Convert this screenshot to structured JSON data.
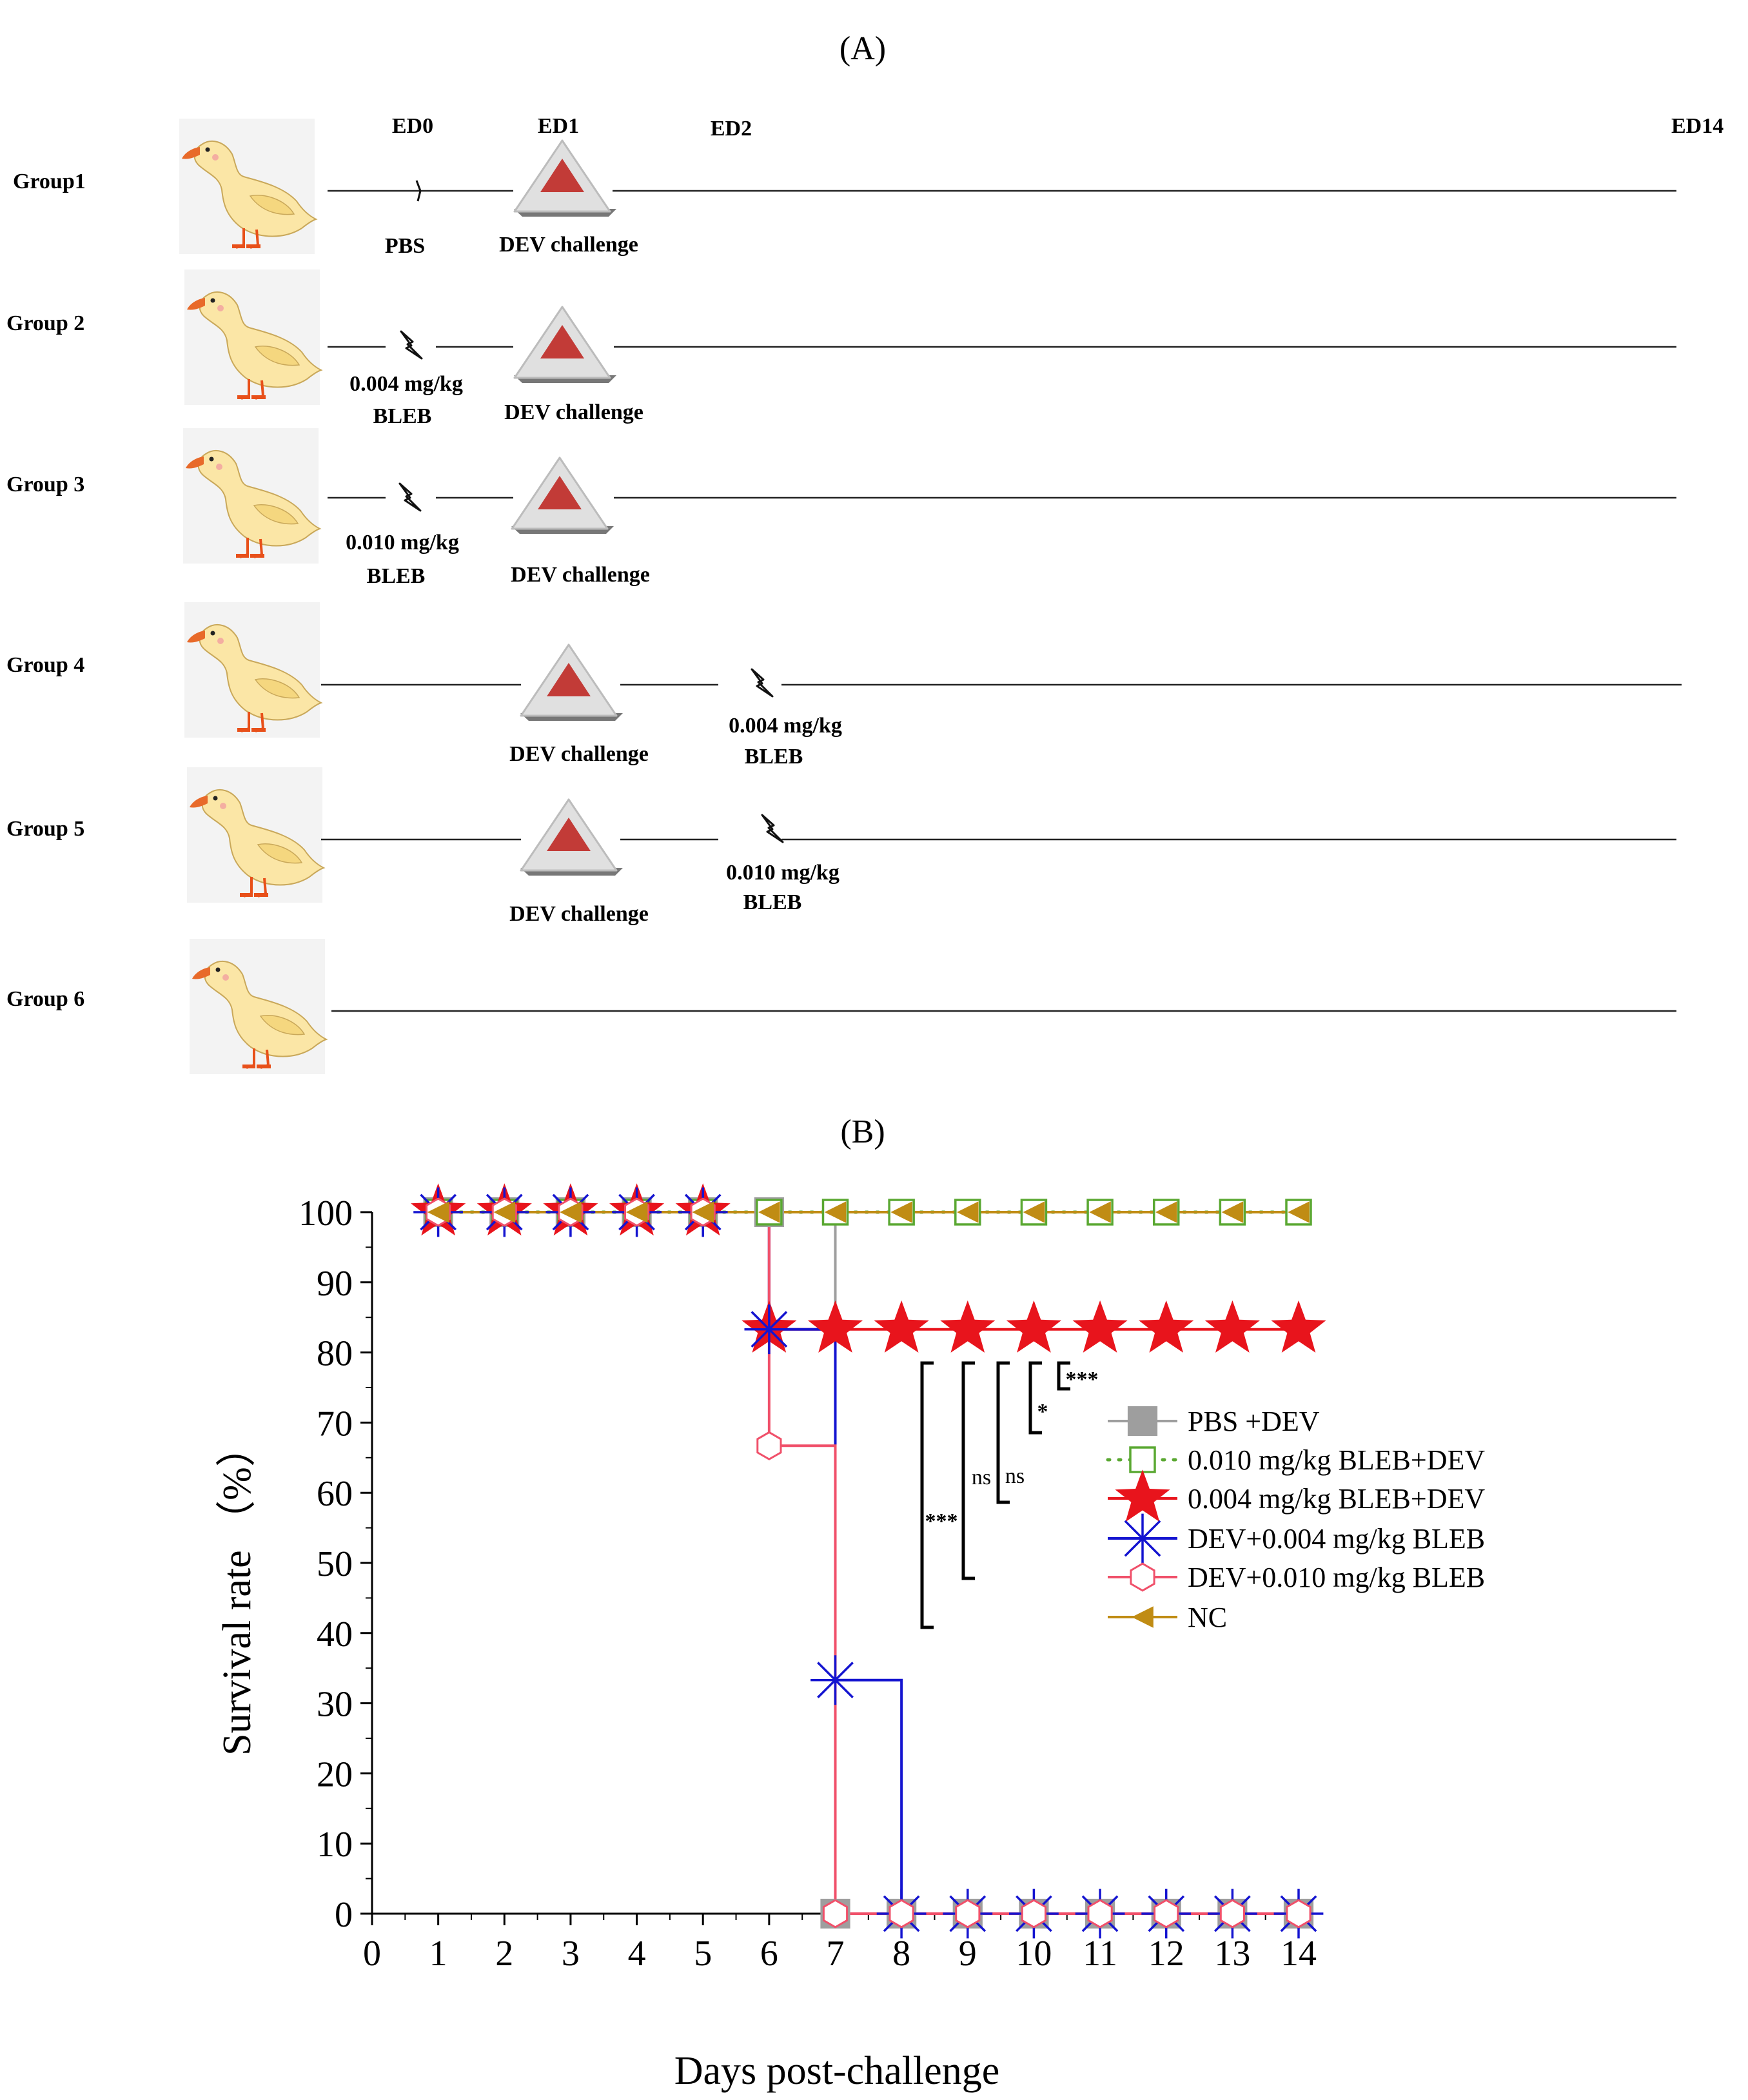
{
  "panel_a": {
    "label": "(A)",
    "day_markers": [
      "ED0",
      "ED1",
      "ED2",
      "ED14"
    ],
    "groups": [
      {
        "name": "Group1",
        "treatment": "PBS",
        "treatment_day": "ED0",
        "challenge": "DEV challenge",
        "challenge_day": "ED1"
      },
      {
        "name": "Group 2",
        "treatment_dose": "0.004 mg/kg",
        "treatment_drug": "BLEB",
        "treatment_day": "ED0",
        "challenge": "DEV challenge",
        "challenge_day": "ED1"
      },
      {
        "name": "Group 3",
        "treatment_dose": "0.010 mg/kg",
        "treatment_drug": "BLEB",
        "treatment_day": "ED0",
        "challenge": "DEV challenge",
        "challenge_day": "ED1"
      },
      {
        "name": "Group 4",
        "challenge": "DEV challenge",
        "challenge_day": "ED1",
        "treatment_dose": "0.004 mg/kg",
        "treatment_drug": "BLEB",
        "treatment_day": "ED2"
      },
      {
        "name": "Group 5",
        "challenge": "DEV challenge",
        "challenge_day": "ED1",
        "treatment_dose": "0.010 mg/kg",
        "treatment_drug": "BLEB",
        "treatment_day": "ED2"
      },
      {
        "name": "Group 6"
      }
    ]
  },
  "panel_b": {
    "label": "(B)"
  },
  "chart_data": {
    "type": "line",
    "step": true,
    "title": "",
    "xlabel": "Days post-challenge",
    "ylabel": "Survival rate （%）",
    "xlim": [
      0,
      14
    ],
    "ylim": [
      0,
      100
    ],
    "x_ticks": [
      0,
      1,
      2,
      3,
      4,
      5,
      6,
      7,
      8,
      9,
      10,
      11,
      12,
      13,
      14
    ],
    "y_ticks": [
      0,
      10,
      20,
      30,
      40,
      50,
      60,
      70,
      80,
      90,
      100
    ],
    "x": [
      1,
      2,
      3,
      4,
      5,
      6,
      7,
      8,
      9,
      10,
      11,
      12,
      13,
      14
    ],
    "series": [
      {
        "name": "PBS +DEV",
        "color": "#9e9e9e",
        "marker": "square-filled",
        "values": [
          100,
          100,
          100,
          100,
          100,
          100,
          0,
          0,
          0,
          0,
          0,
          0,
          0,
          0
        ]
      },
      {
        "name": "0.010 mg/kg BLEB+DEV",
        "color": "#5aa832",
        "marker": "square-open",
        "dotted": true,
        "values": [
          100,
          100,
          100,
          100,
          100,
          100,
          100,
          100,
          100,
          100,
          100,
          100,
          100,
          100
        ]
      },
      {
        "name": "0.004 mg/kg BLEB+DEV",
        "color": "#e8141c",
        "marker": "star",
        "values": [
          100,
          100,
          100,
          100,
          100,
          83.3,
          83.3,
          83.3,
          83.3,
          83.3,
          83.3,
          83.3,
          83.3,
          83.3
        ]
      },
      {
        "name": "DEV+0.004 mg/kg BLEB",
        "color": "#1414d0",
        "marker": "asterisk",
        "values": [
          100,
          100,
          100,
          100,
          100,
          83.3,
          33.3,
          0,
          0,
          0,
          0,
          0,
          0,
          0
        ]
      },
      {
        "name": "DEV+0.010 mg/kg BLEB",
        "color": "#f0506a",
        "marker": "hexagon-open",
        "values": [
          100,
          100,
          100,
          100,
          100,
          66.7,
          0,
          0,
          0,
          0,
          0,
          0,
          0,
          0
        ]
      },
      {
        "name": "NC",
        "color": "#c08c14",
        "marker": "triangle-left",
        "values": [
          100,
          100,
          100,
          100,
          100,
          100,
          100,
          100,
          100,
          100,
          100,
          100,
          100,
          100
        ]
      }
    ],
    "significance": [
      "***",
      "ns",
      "ns",
      "*",
      "***"
    ],
    "legend": "right-center"
  }
}
